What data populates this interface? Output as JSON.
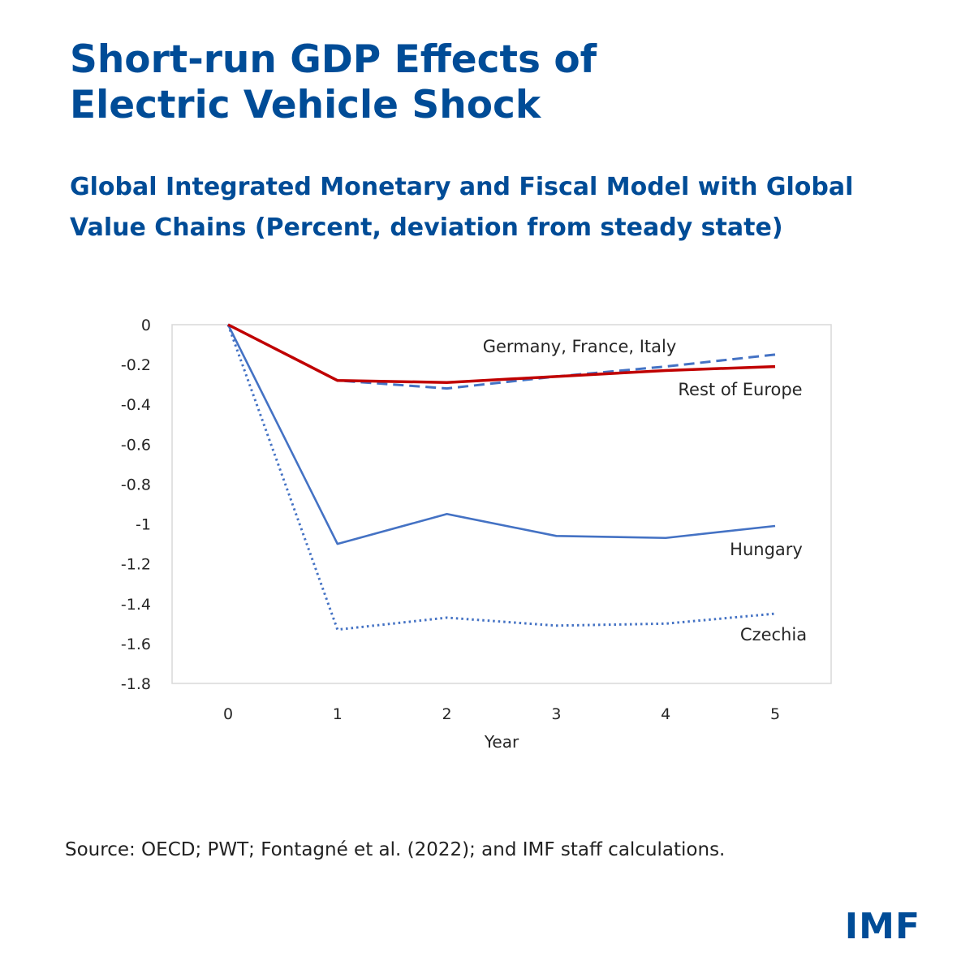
{
  "title_lines": [
    "Short-run GDP Effects of",
    "Electric Vehicle Shock"
  ],
  "subtitle_lines": [
    "Global Integrated Monetary and Fiscal Model with Global",
    "Value Chains (Percent, deviation from steady state)"
  ],
  "source": "Source: OECD; PWT; Fontagné et al. (2022); and IMF staff calculations.",
  "logo_text": "IMF",
  "colors": {
    "brand": "#004c97",
    "blue_series": "#4472c4",
    "red_series": "#c00000"
  },
  "chart_data": {
    "type": "line",
    "xlabel": "Year",
    "ylabel": "",
    "x": [
      0,
      1,
      2,
      3,
      4,
      5
    ],
    "xlim": [
      0,
      5
    ],
    "ylim": [
      -1.8,
      0
    ],
    "yticks": [
      0,
      -0.2,
      -0.4,
      -0.6,
      -0.8,
      -1,
      -1.2,
      -1.4,
      -1.6,
      -1.8
    ],
    "ytick_labels": [
      "0",
      "-0.2",
      "-0.4",
      "-0.6",
      "-0.8",
      "-1",
      "-1.2",
      "-1.4",
      "-1.6",
      "-1.8"
    ],
    "xtick_labels": [
      "0",
      "1",
      "2",
      "3",
      "4",
      "5"
    ],
    "grid": false,
    "series": [
      {
        "name": "Germany, France, Italy",
        "values": [
          0,
          -0.28,
          -0.32,
          -0.26,
          -0.21,
          -0.15
        ],
        "color": "#4472c4",
        "style": "dashed"
      },
      {
        "name": "Rest of Europe",
        "values": [
          0,
          -0.28,
          -0.29,
          -0.26,
          -0.23,
          -0.21
        ],
        "color": "#c00000",
        "style": "solid"
      },
      {
        "name": "Hungary",
        "values": [
          0,
          -1.1,
          -0.95,
          -1.06,
          -1.07,
          -1.01
        ],
        "color": "#4472c4",
        "style": "solid"
      },
      {
        "name": "Czechia",
        "values": [
          0,
          -1.53,
          -1.47,
          -1.51,
          -1.5,
          -1.45
        ],
        "color": "#4472c4",
        "style": "dotted"
      }
    ]
  }
}
